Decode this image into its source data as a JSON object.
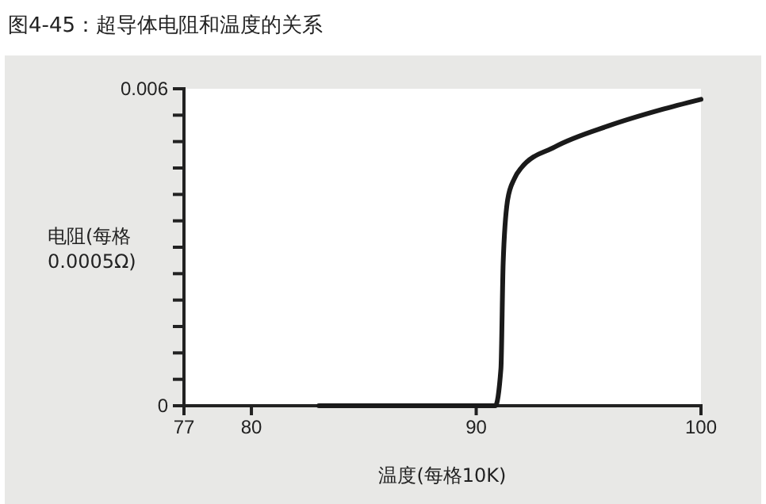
{
  "chart_data": {
    "type": "line",
    "title": "图4-45：超导体电阻和温度的关系",
    "xlabel": "温度(每格10K)",
    "ylabel": "电阻(每格 0.0005Ω)",
    "x": [
      83,
      86,
      89,
      90.85,
      91.1,
      91.2,
      91.4,
      91.7,
      92.0,
      93.5,
      95.9,
      98.2,
      100
    ],
    "series": [
      {
        "color": "#1a1a1a",
        "values": [
          0,
          0,
          0,
          0,
          0.0007,
          0.0027,
          0.0039,
          0.0043,
          0.0045,
          0.0049,
          0.0053,
          0.0056,
          0.0058
        ]
      }
    ],
    "xlim": [
      77,
      100
    ],
    "xticks": [
      77,
      80,
      90,
      100
    ],
    "ylim": [
      0,
      0.006
    ],
    "yticks": [
      0,
      {
        "value": 0.0005,
        "label": null
      },
      {
        "value": 0.001,
        "label": null
      },
      {
        "value": 0.0015,
        "label": null
      },
      {
        "value": 0.002,
        "label": null
      },
      {
        "value": 0.0025,
        "label": null
      },
      {
        "value": 0.003,
        "label": null
      },
      {
        "value": 0.0035,
        "label": null
      },
      {
        "value": 0.004,
        "label": null
      },
      {
        "value": 0.0045,
        "label": null
      },
      {
        "value": 0.005,
        "label": null
      },
      {
        "value": 0.0055,
        "label": null
      },
      0.006
    ],
    "grid": false,
    "marker": "none",
    "line_style": "solid"
  }
}
